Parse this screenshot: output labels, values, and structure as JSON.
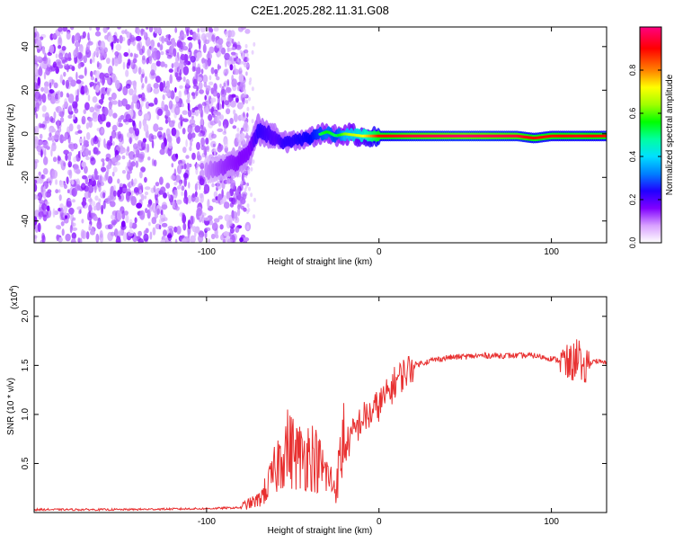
{
  "page_title": "C2E1.2025.282.11.31.G08",
  "chart_data": [
    {
      "type": "heatmap",
      "title": "C2E1.2025.282.11.31.G08",
      "xlabel": "Height of straight line (km)",
      "ylabel": "Frequency (Hz)",
      "xlim": [
        -200,
        132
      ],
      "ylim": [
        -50,
        49
      ],
      "xticks": [
        -100,
        0,
        100
      ],
      "xtick_labels": [
        "-100",
        "0",
        "100"
      ],
      "yticks": [
        -40,
        -20,
        0,
        20,
        40
      ],
      "ytick_labels": [
        "-40",
        "-20",
        "0",
        "20",
        "40"
      ],
      "colorbar": {
        "label": "Normalized spectral amplitude",
        "range": [
          0,
          1
        ],
        "ticks": [
          0.0,
          0.2,
          0.4,
          0.6,
          0.8
        ],
        "tick_labels": [
          "0.0",
          "0.2",
          "0.4",
          "0.6",
          "0.8"
        ],
        "colors": [
          "#ffffff",
          "#c080ff",
          "#8000ff",
          "#0000ff",
          "#00c0ff",
          "#00ffc0",
          "#00ff00",
          "#c0ff00",
          "#ffff00",
          "#ff8000",
          "#ff0000",
          "#ff0080"
        ]
      },
      "noise_region": {
        "x_from": -200,
        "x_to": -82,
        "freq_range": [
          -50,
          49
        ],
        "typical_amplitude": 0.15
      },
      "signal_track": {
        "x": [
          -100,
          -90,
          -80,
          -75,
          -70,
          -60,
          -55,
          -50,
          -40,
          -30,
          -25,
          -20,
          -10,
          0,
          20,
          50,
          80,
          90,
          100,
          115,
          132
        ],
        "freq": [
          -17,
          -15,
          -12,
          -8,
          2,
          -2,
          -4,
          -3,
          -2,
          1,
          -1,
          0,
          -1,
          -1,
          -1,
          -1,
          -1,
          -2,
          -1,
          -1,
          -1
        ],
        "amplitude": [
          0.15,
          0.25,
          0.3,
          0.3,
          0.4,
          0.35,
          0.4,
          0.4,
          0.45,
          0.55,
          0.5,
          0.6,
          0.7,
          0.9,
          0.95,
          0.98,
          0.95,
          0.9,
          0.9,
          0.92,
          0.9
        ]
      }
    },
    {
      "type": "line",
      "xlabel": "Height of straight line (km)",
      "ylabel": "SNR (10 * v/v)",
      "y_multiplier_label": "(x10",
      "y_multiplier_exp": "4",
      "y_multiplier_close": ")",
      "xlim": [
        -200,
        132
      ],
      "ylim": [
        0,
        2.2
      ],
      "xticks": [
        -100,
        0,
        100
      ],
      "xtick_labels": [
        "-100",
        "0",
        "100"
      ],
      "yticks": [
        0.5,
        1.0,
        1.5,
        2.0
      ],
      "ytick_labels": [
        "0.5",
        "1.0",
        "1.5",
        "2.0"
      ],
      "series": [
        {
          "name": "SNR",
          "color": "#e83030",
          "x": [
            -200,
            -150,
            -100,
            -80,
            -70,
            -65,
            -60,
            -55,
            -50,
            -45,
            -40,
            -35,
            -30,
            -25,
            -20,
            -15,
            -10,
            -5,
            0,
            5,
            10,
            20,
            30,
            40,
            60,
            80,
            90,
            100,
            105,
            110,
            114,
            116,
            118,
            120,
            125,
            132
          ],
          "y": [
            0.03,
            0.03,
            0.04,
            0.05,
            0.1,
            0.2,
            0.35,
            0.55,
            0.5,
            0.45,
            0.5,
            0.4,
            0.3,
            0.2,
            0.65,
            0.8,
            0.95,
            1.0,
            1.1,
            1.2,
            1.35,
            1.5,
            1.55,
            1.58,
            1.6,
            1.6,
            1.6,
            1.57,
            1.55,
            1.5,
            1.55,
            1.7,
            1.3,
            1.5,
            1.55,
            1.52
          ]
        }
      ]
    }
  ]
}
